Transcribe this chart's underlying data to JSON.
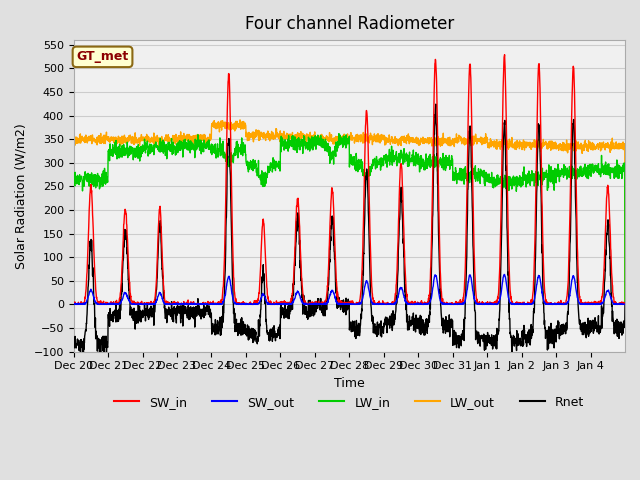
{
  "title": "Four channel Radiometer",
  "xlabel": "Time",
  "ylabel": "Solar Radiation (W/m2)",
  "ylim": [
    -100,
    560
  ],
  "yticks": [
    -100,
    -50,
    0,
    50,
    100,
    150,
    200,
    250,
    300,
    350,
    400,
    450,
    500,
    550
  ],
  "annotation_text": "GT_met",
  "annotation_color": "#8B0000",
  "annotation_bg": "#FFFFD0",
  "annotation_border": "#8B6914",
  "colors": {
    "SW_in": "#FF0000",
    "SW_out": "#0000FF",
    "LW_in": "#00CC00",
    "LW_out": "#FFA500",
    "Rnet": "#000000"
  },
  "tick_labels": [
    "Dec 20",
    "Dec 21",
    "Dec 22",
    "Dec 23",
    "Dec 24",
    "Dec 25",
    "Dec 26",
    "Dec 27",
    "Dec 28",
    "Dec 29",
    "Dec 30",
    "Dec 31",
    "Jan 1",
    "Jan 2",
    "Jan 3",
    "Jan 4"
  ],
  "grid_color": "#CCCCCC",
  "line_width": 1.0,
  "n_days": 16
}
